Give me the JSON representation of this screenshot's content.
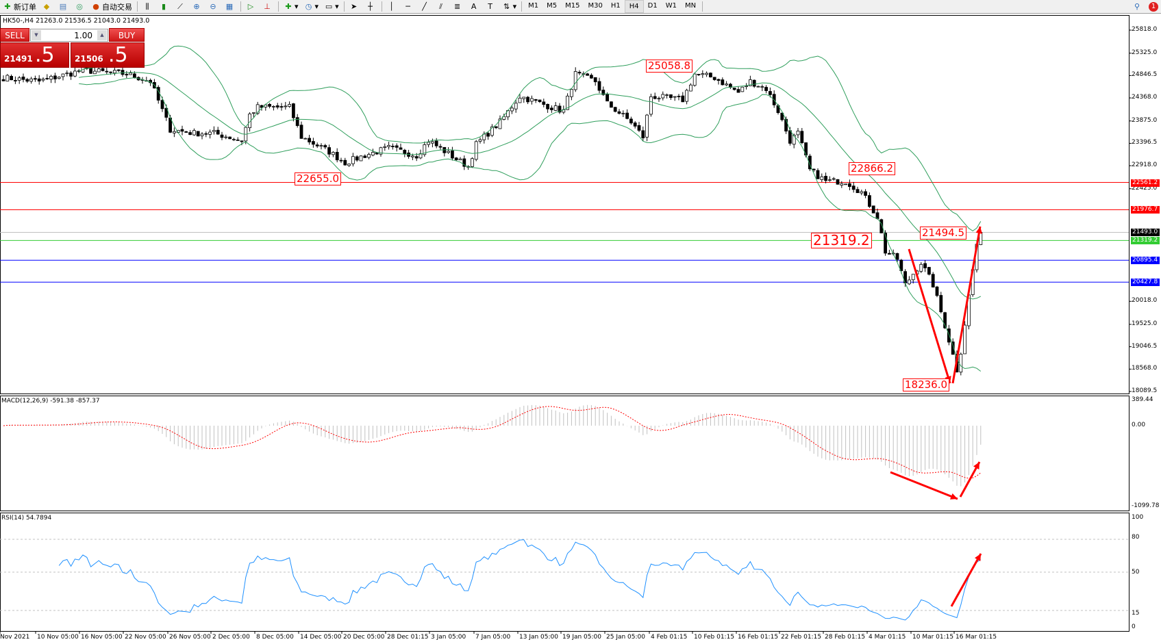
{
  "toolbar": {
    "new_order": "新订单",
    "auto_trading": "自动交易",
    "timeframes": [
      "M1",
      "M5",
      "M15",
      "M30",
      "H1",
      "H4",
      "D1",
      "W1",
      "MN"
    ],
    "active_timeframe": "H4",
    "notification_count": "1",
    "icons": [
      "new-order-icon",
      "gold-icon",
      "server-icon",
      "signal-icon",
      "auto-trading-icon",
      "bar-chart-icon",
      "candlestick-icon",
      "line-chart-icon",
      "zoom-in-icon",
      "zoom-out-icon",
      "tile-windows-icon",
      "auto-scroll-icon",
      "chart-shift-icon",
      "indicators-icon",
      "periods-icon",
      "templates-icon",
      "cursor-icon",
      "crosshair-icon",
      "vertical-line-icon",
      "horizontal-line-icon",
      "trendline-icon",
      "fibonacci-icon",
      "channel-icon",
      "text-icon",
      "text-label-icon",
      "arrows-icon",
      "search-icon"
    ]
  },
  "chart": {
    "header": "HK50-,H4  21263.0 21536.5 21043.0 21493.0",
    "trade_panel": {
      "sell_label": "SELL",
      "buy_label": "BUY",
      "volume": "1.00",
      "sell_price_main": "21491",
      "sell_price_frac": ".5",
      "buy_price_main": "21506",
      "buy_price_frac": ".5"
    },
    "annotations": [
      "25058.8",
      "22655.0",
      "22866.2",
      "21319.2",
      "21494.5",
      "18236.0"
    ],
    "price_axis": [
      "25818.0",
      "25325.0",
      "24846.5",
      "24368.0",
      "23875.0",
      "23396.5",
      "22918.0",
      "22425.0",
      "20018.0",
      "19525.0",
      "19046.5",
      "18568.0",
      "18089.5"
    ],
    "levels": [
      {
        "price": 22561.2,
        "label": "22561.2",
        "color": "#ff0000"
      },
      {
        "price": 21976.7,
        "label": "21976.7",
        "color": "#ff0000"
      },
      {
        "price": 21493.0,
        "label": "21493.0",
        "color": "#000000",
        "line": "#c0c0c0"
      },
      {
        "price": 21319.2,
        "label": "21319.2",
        "color": "#33cc33"
      },
      {
        "price": 20895.4,
        "label": "20895.4",
        "color": "#0000ff"
      },
      {
        "price": 20427.8,
        "label": "20427.8",
        "color": "#0000ff"
      }
    ],
    "macd_label": "MACD(12,26,9) -591.38 -857.37",
    "macd_axis": [
      "389.44",
      "0.00",
      "-1099.78"
    ],
    "rsi_label": "RSI(14) 54.7894",
    "rsi_axis": [
      "100",
      "80",
      "50",
      "15",
      "0"
    ],
    "dates": [
      "Nov 2021",
      "10 Nov 05:00",
      "16 Nov 05:00",
      "22 Nov 05:00",
      "26 Nov 05:00",
      "2 Dec 05:00",
      "8 Dec 05:00",
      "14 Dec 05:00",
      "20 Dec 05:00",
      "28 Dec 01:15",
      "3 Jan 05:00",
      "7 Jan 05:00",
      "13 Jan 05:00",
      "19 Jan 05:00",
      "25 Jan 05:00",
      "4 Feb 01:15",
      "10 Feb 01:15",
      "16 Feb 01:15",
      "22 Feb 01:15",
      "28 Feb 01:15",
      "4 Mar 01:15",
      "10 Mar 01:15",
      "16 Mar 01:15"
    ],
    "colors": {
      "bands": "#2e9e5b",
      "macd_hist": "#c0c0c0",
      "macd_signal": "#ff0000",
      "rsi": "#1e90ff",
      "arrows": "#ff0000"
    }
  },
  "chart_data": {
    "type": "candlestick",
    "symbol": "HK50-",
    "timeframe": "H4",
    "price_range": [
      18089.5,
      25818.0
    ],
    "approx_swing_closes": [
      [
        0,
        24801
      ],
      [
        9,
        24722
      ],
      [
        20,
        24959
      ],
      [
        31,
        24880
      ],
      [
        37,
        24722
      ],
      [
        42,
        23694
      ],
      [
        48,
        23614
      ],
      [
        53,
        23614
      ],
      [
        60,
        23456
      ],
      [
        62,
        24010
      ],
      [
        64,
        24168
      ],
      [
        72,
        24168
      ],
      [
        75,
        23535
      ],
      [
        82,
        23219
      ],
      [
        86,
        22982
      ],
      [
        91,
        23140
      ],
      [
        97,
        23298
      ],
      [
        104,
        23140
      ],
      [
        107,
        23456
      ],
      [
        114,
        23061
      ],
      [
        117,
        22903
      ],
      [
        119,
        23377
      ],
      [
        125,
        23852
      ],
      [
        130,
        24405
      ],
      [
        138,
        24168
      ],
      [
        141,
        24089
      ],
      [
        144,
        24880
      ],
      [
        149,
        24722
      ],
      [
        152,
        24247
      ],
      [
        158,
        23852
      ],
      [
        161,
        23535
      ],
      [
        163,
        24405
      ],
      [
        171,
        24326
      ],
      [
        174,
        24880
      ],
      [
        179,
        24801
      ],
      [
        185,
        24484
      ],
      [
        188,
        24722
      ],
      [
        192,
        24564
      ],
      [
        195,
        24089
      ],
      [
        198,
        23456
      ],
      [
        200,
        23614
      ],
      [
        203,
        22824
      ],
      [
        207,
        22586
      ],
      [
        212,
        22586
      ],
      [
        216,
        22349
      ],
      [
        220,
        21827
      ],
      [
        222,
        21083
      ],
      [
        225,
        20925
      ],
      [
        227,
        20371
      ],
      [
        231,
        20846
      ],
      [
        234,
        20371
      ],
      [
        237,
        19501
      ],
      [
        240,
        18552
      ],
      [
        241,
        18948
      ],
      [
        243,
        20134
      ],
      [
        245,
        21241
      ],
      [
        246,
        21493
      ]
    ],
    "indicators": [
      "Bollinger Bands",
      "MACD(12,26,9)",
      "RSI(14)"
    ],
    "macd_range": [
      -1099.78,
      389.44
    ],
    "rsi_levels": [
      80,
      50,
      15
    ]
  }
}
